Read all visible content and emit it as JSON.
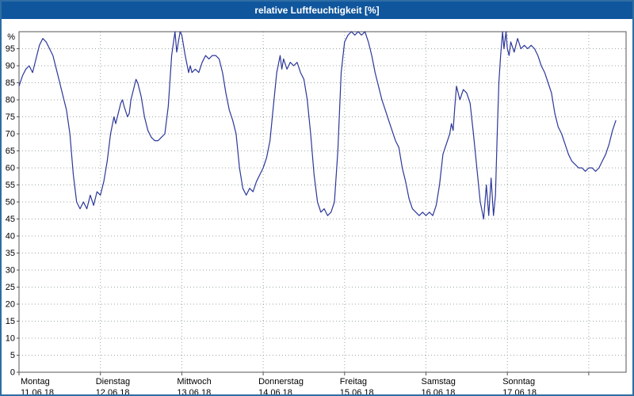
{
  "window": {
    "title": "relative Luftfeuchtigkeit [%]"
  },
  "colors": {
    "titlebar_bg": "#10569d",
    "title_text": "#ffffff",
    "grid": "#9aaa9e",
    "axis": "#555555",
    "border": "#2e6da4",
    "label": "#000000"
  },
  "chart_data": {
    "type": "line",
    "title": "relative Luftfeuchtigkeit [%]",
    "xlabel": "",
    "ylabel": "%",
    "ylim": [
      0,
      100
    ],
    "grid": true,
    "legend": "none",
    "yticks": [
      0,
      5,
      10,
      15,
      20,
      25,
      30,
      35,
      40,
      45,
      50,
      55,
      60,
      65,
      70,
      75,
      80,
      85,
      90,
      95
    ],
    "x_total_hours": 179,
    "extra_gridline_hour": 168,
    "day_ticks": [
      {
        "name": "Montag",
        "date": "11.06.18",
        "hour": 0
      },
      {
        "name": "Dienstag",
        "date": "12.06.18",
        "hour": 24
      },
      {
        "name": "Mittwoch",
        "date": "13.06.18",
        "hour": 48
      },
      {
        "name": "Donnerstag",
        "date": "14.06.18",
        "hour": 72
      },
      {
        "name": "Freitag",
        "date": "15.06.18",
        "hour": 96
      },
      {
        "name": "Samstag",
        "date": "16.06.18",
        "hour": 120
      },
      {
        "name": "Sonntag",
        "date": "17.06.18",
        "hour": 144
      }
    ],
    "series": [
      {
        "name": "relative Luftfeuchtigkeit",
        "color": "#2c3799",
        "points": [
          [
            0,
            84
          ],
          [
            1,
            87
          ],
          [
            2,
            89
          ],
          [
            3,
            90
          ],
          [
            4,
            88
          ],
          [
            5,
            92
          ],
          [
            6,
            96
          ],
          [
            7,
            98
          ],
          [
            8,
            97
          ],
          [
            9,
            95
          ],
          [
            10,
            93
          ],
          [
            11,
            89
          ],
          [
            12,
            85
          ],
          [
            13,
            81
          ],
          [
            14,
            77
          ],
          [
            15,
            70
          ],
          [
            16,
            58
          ],
          [
            17,
            50
          ],
          [
            18,
            48
          ],
          [
            19,
            50
          ],
          [
            20,
            48
          ],
          [
            21,
            52
          ],
          [
            22,
            49
          ],
          [
            23,
            53
          ],
          [
            24,
            52
          ],
          [
            25,
            56
          ],
          [
            26,
            62
          ],
          [
            27,
            70
          ],
          [
            28,
            75
          ],
          [
            28.5,
            73
          ],
          [
            29,
            75
          ],
          [
            30,
            79
          ],
          [
            30.5,
            80
          ],
          [
            31,
            78
          ],
          [
            32,
            75
          ],
          [
            32.5,
            76
          ],
          [
            33,
            80
          ],
          [
            34,
            84
          ],
          [
            34.5,
            86
          ],
          [
            35,
            85
          ],
          [
            36,
            81
          ],
          [
            37,
            75
          ],
          [
            38,
            71
          ],
          [
            39,
            69
          ],
          [
            40,
            68
          ],
          [
            41,
            68
          ],
          [
            42,
            69
          ],
          [
            43,
            70
          ],
          [
            44,
            78
          ],
          [
            45,
            93
          ],
          [
            46,
            100
          ],
          [
            46.5,
            94
          ],
          [
            47,
            97
          ],
          [
            47.5,
            100
          ],
          [
            48,
            99
          ],
          [
            49,
            93
          ],
          [
            50,
            88
          ],
          [
            50.5,
            90
          ],
          [
            51,
            88
          ],
          [
            52,
            89
          ],
          [
            53,
            88
          ],
          [
            54,
            91
          ],
          [
            55,
            93
          ],
          [
            56,
            92
          ],
          [
            57,
            93
          ],
          [
            58,
            93
          ],
          [
            59,
            92
          ],
          [
            60,
            88
          ],
          [
            61,
            82
          ],
          [
            62,
            77
          ],
          [
            63,
            74
          ],
          [
            64,
            70
          ],
          [
            65,
            60
          ],
          [
            66,
            54
          ],
          [
            67,
            52
          ],
          [
            68,
            54
          ],
          [
            69,
            53
          ],
          [
            70,
            56
          ],
          [
            71,
            58
          ],
          [
            72,
            60
          ],
          [
            73,
            63
          ],
          [
            74,
            68
          ],
          [
            75,
            78
          ],
          [
            76,
            88
          ],
          [
            77,
            93
          ],
          [
            77.5,
            89
          ],
          [
            78,
            92
          ],
          [
            79,
            89
          ],
          [
            80,
            91
          ],
          [
            81,
            90
          ],
          [
            82,
            91
          ],
          [
            83,
            88
          ],
          [
            84,
            86
          ],
          [
            85,
            80
          ],
          [
            86,
            70
          ],
          [
            87,
            58
          ],
          [
            88,
            50
          ],
          [
            89,
            47
          ],
          [
            90,
            48
          ],
          [
            91,
            46
          ],
          [
            92,
            47
          ],
          [
            93,
            50
          ],
          [
            94,
            65
          ],
          [
            95,
            88
          ],
          [
            96,
            97
          ],
          [
            97,
            99
          ],
          [
            98,
            100
          ],
          [
            99,
            99
          ],
          [
            100,
            100
          ],
          [
            101,
            99
          ],
          [
            102,
            100
          ],
          [
            103,
            97
          ],
          [
            104,
            93
          ],
          [
            105,
            88
          ],
          [
            106,
            84
          ],
          [
            107,
            80
          ],
          [
            108,
            77
          ],
          [
            109,
            74
          ],
          [
            110,
            71
          ],
          [
            111,
            68
          ],
          [
            112,
            66
          ],
          [
            113,
            60
          ],
          [
            114,
            56
          ],
          [
            115,
            51
          ],
          [
            116,
            48
          ],
          [
            117,
            47
          ],
          [
            118,
            46
          ],
          [
            119,
            47
          ],
          [
            120,
            46
          ],
          [
            121,
            47
          ],
          [
            122,
            46
          ],
          [
            123,
            49
          ],
          [
            124,
            55
          ],
          [
            125,
            64
          ],
          [
            126,
            67
          ],
          [
            127,
            70
          ],
          [
            127.5,
            73
          ],
          [
            128,
            71
          ],
          [
            128.5,
            78
          ],
          [
            129,
            84
          ],
          [
            130,
            80
          ],
          [
            131,
            83
          ],
          [
            132,
            82
          ],
          [
            133,
            79
          ],
          [
            134,
            70
          ],
          [
            135,
            60
          ],
          [
            136,
            50
          ],
          [
            137,
            45
          ],
          [
            137.8,
            55
          ],
          [
            138.5,
            46
          ],
          [
            139.2,
            57
          ],
          [
            139.9,
            46
          ],
          [
            140.5,
            52
          ],
          [
            141,
            70
          ],
          [
            141.5,
            85
          ],
          [
            142,
            93
          ],
          [
            142.6,
            100
          ],
          [
            143,
            95
          ],
          [
            143.6,
            100
          ],
          [
            144,
            95
          ],
          [
            144.5,
            93
          ],
          [
            145,
            97
          ],
          [
            146,
            94
          ],
          [
            147,
            98
          ],
          [
            148,
            95
          ],
          [
            149,
            96
          ],
          [
            150,
            95
          ],
          [
            151,
            96
          ],
          [
            152,
            95
          ],
          [
            153,
            93
          ],
          [
            154,
            90
          ],
          [
            155,
            88
          ],
          [
            156,
            85
          ],
          [
            157,
            82
          ],
          [
            158,
            76
          ],
          [
            159,
            72
          ],
          [
            160,
            70
          ],
          [
            161,
            67
          ],
          [
            162,
            64
          ],
          [
            163,
            62
          ],
          [
            164,
            61
          ],
          [
            165,
            60
          ],
          [
            166,
            60
          ],
          [
            167,
            59
          ],
          [
            168,
            60
          ],
          [
            169,
            60
          ],
          [
            170,
            59
          ],
          [
            171,
            60
          ],
          [
            172,
            62
          ],
          [
            173,
            64
          ],
          [
            174,
            67
          ],
          [
            175,
            71
          ],
          [
            176,
            74
          ]
        ]
      }
    ]
  }
}
